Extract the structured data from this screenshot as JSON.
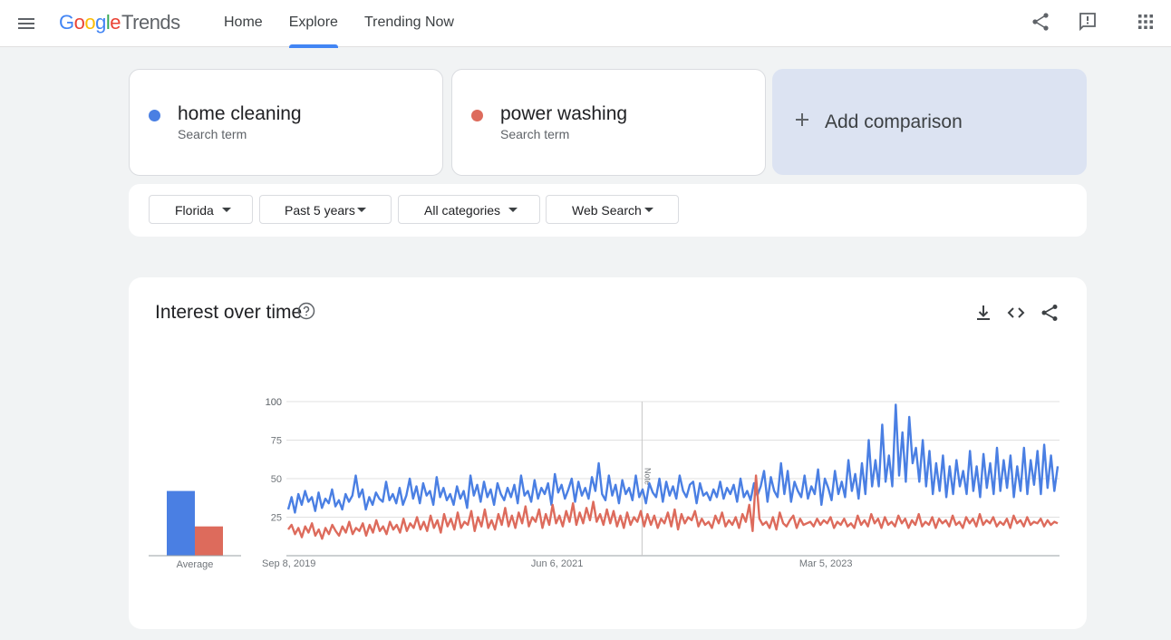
{
  "header": {
    "logo": {
      "g": "G",
      "o1": "o",
      "o2": "o",
      "g2": "g",
      "l": "l",
      "e": "e",
      "trends": "Trends"
    },
    "nav": [
      {
        "label": "Home",
        "active": false
      },
      {
        "label": "Explore",
        "active": true
      },
      {
        "label": "Trending Now",
        "active": false
      }
    ],
    "icons": [
      "menu-icon",
      "share-icon",
      "feedback-icon",
      "apps-icon"
    ]
  },
  "terms": [
    {
      "name": "home cleaning",
      "type": "Search term",
      "color": "#4a7fe3"
    },
    {
      "name": "power washing",
      "type": "Search term",
      "color": "#dd6b5c"
    }
  ],
  "add_comparison": {
    "label": "Add comparison"
  },
  "filters": [
    {
      "label": "Florida"
    },
    {
      "label": "Past 5 years"
    },
    {
      "label": "All categories"
    },
    {
      "label": "Web Search"
    }
  ],
  "chart": {
    "title": "Interest over time",
    "icons": [
      "help-icon",
      "download-icon",
      "embed-icon",
      "share-icon"
    ],
    "average_label": "Average",
    "note_label": "Note",
    "colors": {
      "blue": "#4a7fe3",
      "red": "#dd6b5c",
      "grid": "#e0e0e0"
    }
  },
  "chart_data": {
    "type": "line",
    "x_ticks": [
      "Sep 8, 2019",
      "Jun 6, 2021",
      "Mar 5, 2023"
    ],
    "y_ticks": [
      25,
      50,
      75,
      100
    ],
    "ylim": [
      0,
      100
    ],
    "grid": true,
    "averages": [
      {
        "name": "home cleaning",
        "value": 42
      },
      {
        "name": "power washing",
        "value": 19
      }
    ],
    "series": [
      {
        "name": "home cleaning",
        "color": "#4a7fe3",
        "values": [
          30,
          38,
          28,
          40,
          33,
          42,
          35,
          38,
          29,
          41,
          31,
          37,
          34,
          43,
          32,
          36,
          30,
          40,
          35,
          39,
          52,
          38,
          43,
          30,
          38,
          33,
          41,
          37,
          35,
          48,
          36,
          40,
          34,
          44,
          33,
          39,
          50,
          37,
          45,
          34,
          47,
          39,
          42,
          33,
          51,
          38,
          44,
          36,
          40,
          33,
          45,
          37,
          42,
          31,
          52,
          39,
          46,
          35,
          48,
          38,
          43,
          33,
          47,
          40,
          36,
          44,
          38,
          46,
          34,
          52,
          39,
          42,
          35,
          49,
          37,
          44,
          40,
          47,
          33,
          53,
          41,
          46,
          37,
          43,
          50,
          35,
          48,
          39,
          44,
          37,
          51,
          42,
          60,
          40,
          36,
          52,
          39,
          46,
          34,
          49,
          40,
          44,
          36,
          52,
          38,
          43,
          34,
          47,
          41,
          38,
          50,
          35,
          48,
          39,
          45,
          37,
          52,
          42,
          38,
          46,
          48,
          34,
          47,
          39,
          41,
          36,
          43,
          38,
          48,
          37,
          44,
          40,
          46,
          35,
          50,
          38,
          42,
          36,
          47,
          39,
          45,
          55,
          35,
          51,
          42,
          38,
          60,
          40,
          55,
          35,
          48,
          42,
          38,
          52,
          37,
          45,
          40,
          56,
          33,
          50,
          44,
          36,
          55,
          40,
          48,
          38,
          62,
          42,
          53,
          37,
          60,
          40,
          75,
          45,
          62,
          45,
          85,
          48,
          65,
          45,
          98,
          52,
          80,
          48,
          90,
          60,
          70,
          48,
          75,
          45,
          68,
          40,
          60,
          42,
          65,
          38,
          58,
          40,
          62,
          45,
          55,
          40,
          68,
          42,
          58,
          38,
          66,
          44,
          60,
          40,
          70,
          42,
          62,
          44,
          65,
          38,
          58,
          42,
          70,
          40,
          62,
          46,
          68,
          40,
          72,
          44,
          65,
          42,
          58
        ]
      },
      {
        "name": "power washing",
        "color": "#dd6b5c",
        "values": [
          17,
          20,
          14,
          18,
          12,
          19,
          15,
          21,
          13,
          17,
          11,
          18,
          14,
          20,
          16,
          13,
          19,
          15,
          22,
          14,
          18,
          16,
          21,
          13,
          20,
          15,
          23,
          16,
          19,
          14,
          22,
          17,
          20,
          15,
          24,
          16,
          21,
          18,
          25,
          17,
          22,
          16,
          26,
          18,
          23,
          15,
          27,
          19,
          24,
          17,
          28,
          18,
          22,
          20,
          29,
          16,
          25,
          19,
          30,
          18,
          23,
          17,
          27,
          20,
          31,
          19,
          26,
          18,
          28,
          21,
          32,
          19,
          25,
          22,
          30,
          18,
          27,
          20,
          33,
          21,
          26,
          19,
          29,
          22,
          34,
          20,
          28,
          21,
          31,
          23,
          35,
          22,
          27,
          20,
          30,
          21,
          29,
          19,
          26,
          18,
          28,
          20,
          25,
          22,
          29,
          19,
          27,
          20,
          26,
          18,
          24,
          21,
          28,
          19,
          30,
          17,
          27,
          21,
          25,
          23,
          29,
          19,
          24,
          20,
          22,
          18,
          26,
          21,
          28,
          19,
          23,
          20,
          25,
          18,
          27,
          22,
          33,
          16,
          52,
          24,
          20,
          22,
          18,
          25,
          17,
          28,
          21,
          19,
          23,
          26,
          18,
          24,
          20,
          21,
          22,
          19,
          24,
          20,
          23,
          21,
          25,
          18,
          22,
          20,
          24,
          19,
          21,
          18,
          26,
          20,
          23,
          19,
          27,
          21,
          24,
          18,
          25,
          20,
          22,
          19,
          26,
          21,
          24,
          18,
          23,
          20,
          27,
          19,
          22,
          20,
          25,
          18,
          24,
          21,
          23,
          19,
          26,
          20,
          22,
          18,
          25,
          21,
          24,
          19,
          27,
          20,
          23,
          21,
          25,
          19,
          22,
          20,
          24,
          18,
          26,
          21,
          23,
          19,
          25,
          20,
          22,
          21,
          24,
          19,
          23,
          20,
          22,
          21
        ]
      }
    ],
    "annotation": {
      "label": "Note",
      "x_fraction": 0.46
    }
  }
}
